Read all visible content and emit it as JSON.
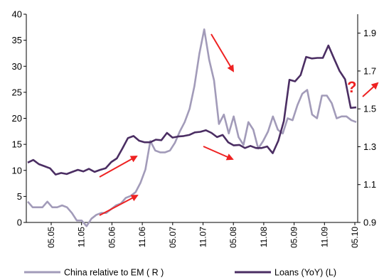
{
  "chart_data": {
    "type": "line",
    "title": "",
    "xlabel": "",
    "ylabel_left": "",
    "ylabel_right": "",
    "x_tick_labels": [
      "05.05",
      "11.05",
      "05.06",
      "11.06",
      "05.07",
      "11.07",
      "05.08",
      "11.08",
      "05.09",
      "11.09",
      "05.10"
    ],
    "left_axis": {
      "ylim": [
        0,
        40
      ],
      "ticks": [
        0,
        5,
        10,
        15,
        20,
        25,
        30,
        35,
        40
      ]
    },
    "right_axis": {
      "ylim": [
        0.9,
        2.0
      ],
      "ticks": [
        0.9,
        1.1,
        1.3,
        1.5,
        1.7,
        1.9
      ]
    },
    "grid": false,
    "legend_position": "bottom",
    "series": [
      {
        "name": "China relative to EM ( R )",
        "axis": "right",
        "color": "#a29bb9",
        "values": [
          1.01,
          0.98,
          0.98,
          0.98,
          1.01,
          0.98,
          0.98,
          0.99,
          0.98,
          0.95,
          0.91,
          0.91,
          0.88,
          0.92,
          0.94,
          0.95,
          0.95,
          0.97,
          0.99,
          1.0,
          1.03,
          1.04,
          1.06,
          1.11,
          1.18,
          1.33,
          1.28,
          1.27,
          1.27,
          1.28,
          1.32,
          1.38,
          1.43,
          1.5,
          1.62,
          1.79,
          1.92,
          1.76,
          1.65,
          1.42,
          1.47,
          1.37,
          1.46,
          1.35,
          1.31,
          1.43,
          1.39,
          1.29,
          1.33,
          1.38,
          1.46,
          1.39,
          1.37,
          1.45,
          1.44,
          1.52,
          1.58,
          1.6,
          1.47,
          1.45,
          1.57,
          1.57,
          1.53,
          1.45,
          1.46,
          1.46,
          1.44,
          1.43
        ]
      },
      {
        "name": "Loans (YoY) (L)",
        "axis": "left",
        "color": "#4b2e63",
        "values": [
          11.5,
          12.0,
          11.2,
          10.8,
          10.4,
          9.2,
          9.5,
          9.3,
          9.7,
          10.1,
          9.8,
          10.3,
          9.7,
          10.1,
          10.4,
          11.6,
          12.3,
          14.2,
          16.2,
          16.6,
          15.7,
          15.4,
          15.4,
          15.9,
          15.8,
          17.2,
          16.3,
          16.5,
          16.6,
          16.8,
          17.3,
          17.4,
          17.7,
          17.2,
          16.4,
          16.8,
          15.4,
          14.8,
          14.9,
          14.3,
          14.7,
          14.3,
          14.3,
          14.6,
          13.3,
          15.7,
          19.5,
          27.4,
          27.1,
          28.3,
          31.8,
          31.5,
          31.6,
          31.6,
          34.0,
          31.5,
          29.1,
          27.5,
          22.0,
          22.1
        ]
      }
    ],
    "legend": [
      {
        "label": "China relative to EM ( R )",
        "color": "#a29bb9"
      },
      {
        "label": "Loans (YoY) (L)",
        "color": "#4b2e63"
      }
    ],
    "annotations": [
      {
        "kind": "arrow",
        "color": "#ee2222"
      },
      {
        "kind": "arrow",
        "color": "#ee2222"
      },
      {
        "kind": "arrow",
        "color": "#ee2222"
      },
      {
        "kind": "arrow",
        "color": "#ee2222"
      },
      {
        "kind": "arrow",
        "color": "#ee2222"
      },
      {
        "kind": "text",
        "text": "?",
        "color": "#ee2222"
      }
    ]
  }
}
